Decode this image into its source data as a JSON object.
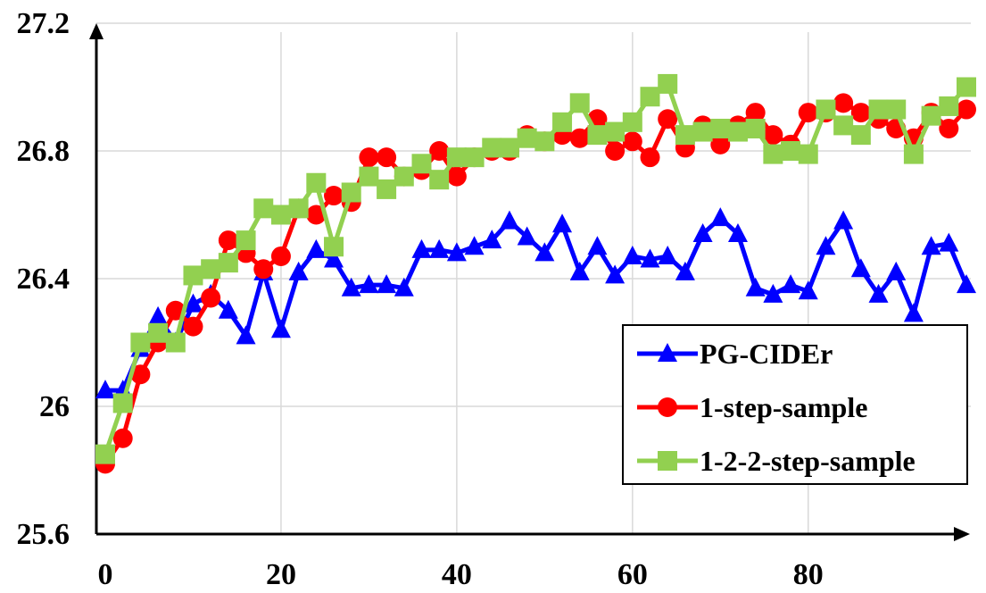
{
  "chart_data": {
    "type": "line",
    "title": "",
    "xlabel": "",
    "ylabel": "",
    "xlim": [
      0,
      100
    ],
    "ylim": [
      25.6,
      27.2
    ],
    "x_ticks": [
      0,
      20,
      40,
      60,
      80
    ],
    "x_tick_labels": [
      "0",
      "20",
      "40",
      "60",
      "80"
    ],
    "y_ticks": [
      25.6,
      26.0,
      26.4,
      26.8,
      27.2
    ],
    "y_tick_labels": [
      "25.6",
      "26",
      "26.4",
      "26.8",
      "27.2"
    ],
    "grid": true,
    "legend_position": "bottom-right",
    "x": [
      0,
      2,
      4,
      6,
      8,
      10,
      12,
      14,
      16,
      18,
      20,
      22,
      24,
      26,
      28,
      30,
      32,
      34,
      36,
      38,
      40,
      42,
      44,
      46,
      48,
      50,
      52,
      54,
      56,
      58,
      60,
      62,
      64,
      66,
      68,
      70,
      72,
      74,
      76,
      78,
      80,
      82,
      84,
      86,
      88,
      90,
      92,
      94,
      96,
      98
    ],
    "series": [
      {
        "name": "PG-CIDEr",
        "color": "#0000ff",
        "marker": "triangle",
        "values": [
          26.05,
          26.05,
          26.18,
          26.28,
          26.2,
          26.32,
          26.35,
          26.3,
          26.22,
          26.42,
          26.24,
          26.42,
          26.49,
          26.46,
          26.37,
          26.38,
          26.38,
          26.37,
          26.49,
          26.49,
          26.48,
          26.5,
          26.52,
          26.58,
          26.53,
          26.48,
          26.57,
          26.42,
          26.5,
          26.41,
          26.47,
          26.46,
          26.47,
          26.42,
          26.54,
          26.59,
          26.54,
          26.37,
          26.35,
          26.38,
          26.36,
          26.5,
          26.58,
          26.43,
          26.35,
          26.42,
          26.29,
          26.5,
          26.51,
          26.38
        ]
      },
      {
        "name": "1-step-sample",
        "color": "#ff0000",
        "marker": "circle",
        "values": [
          25.82,
          25.9,
          26.1,
          26.2,
          26.3,
          26.25,
          26.34,
          26.52,
          26.48,
          26.43,
          26.47,
          26.62,
          26.6,
          26.66,
          26.64,
          26.78,
          26.78,
          26.72,
          26.74,
          26.8,
          26.72,
          26.78,
          26.8,
          26.8,
          26.85,
          26.83,
          26.85,
          26.84,
          26.9,
          26.8,
          26.83,
          26.78,
          26.9,
          26.81,
          26.88,
          26.82,
          26.88,
          26.92,
          26.85,
          26.82,
          26.92,
          26.92,
          26.95,
          26.92,
          26.9,
          26.87,
          26.84,
          26.92,
          26.87,
          26.93
        ]
      },
      {
        "name": "1-2-2-step-sample",
        "color": "#92d050",
        "marker": "square",
        "values": [
          25.85,
          26.01,
          26.2,
          26.23,
          26.2,
          26.41,
          26.43,
          26.45,
          26.52,
          26.62,
          26.6,
          26.62,
          26.7,
          26.5,
          26.67,
          26.72,
          26.68,
          26.72,
          26.76,
          26.71,
          26.78,
          26.78,
          26.81,
          26.81,
          26.84,
          26.83,
          26.89,
          26.95,
          26.85,
          26.86,
          26.89,
          26.97,
          27.01,
          26.85,
          26.86,
          26.87,
          26.86,
          26.87,
          26.79,
          26.8,
          26.79,
          26.93,
          26.88,
          26.85,
          26.93,
          26.93,
          26.79,
          26.91,
          26.94,
          27.0
        ]
      }
    ]
  }
}
